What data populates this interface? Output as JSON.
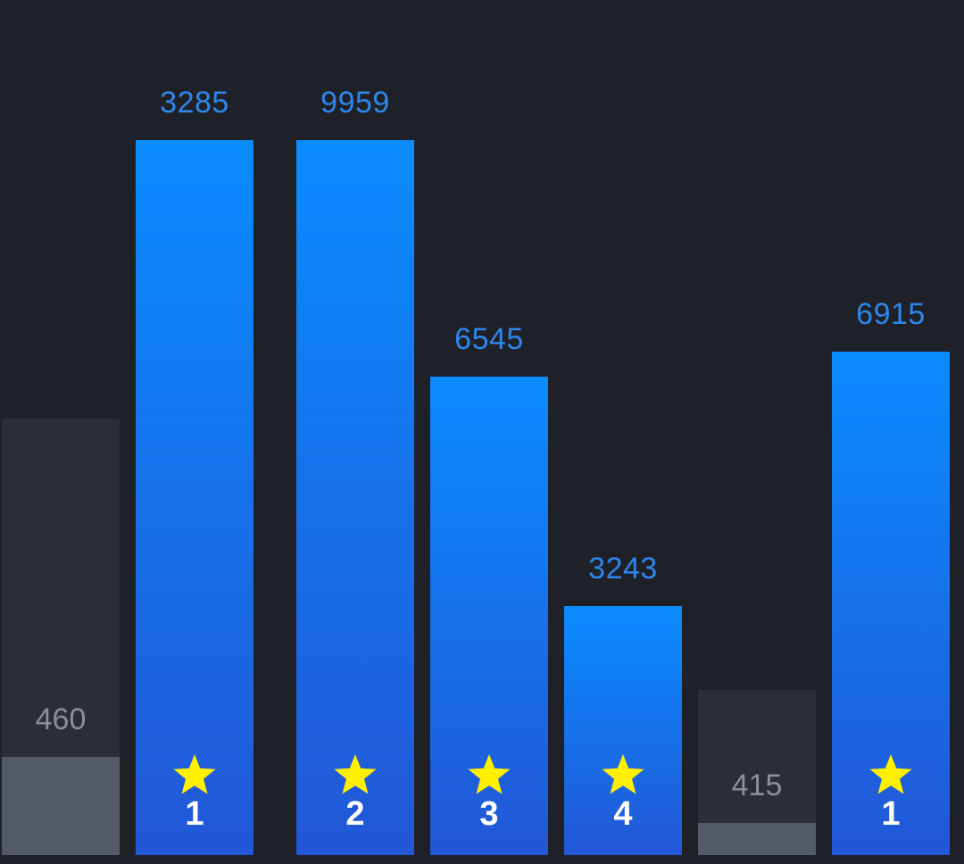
{
  "colors": {
    "background": "#1f2128",
    "active_bar_top": "#0a8cff",
    "active_bar_bottom": "#2257d6",
    "inactive_bar": "#2b2e36",
    "inactive_fill": "#545a68",
    "value_label": "#2f86ea",
    "star": "#ffef00"
  },
  "bars": [
    {
      "value": "460",
      "active": false,
      "rank": "",
      "icon": ""
    },
    {
      "value": "3285",
      "active": true,
      "rank": "1",
      "icon": "star-icon"
    },
    {
      "value": "9959",
      "active": true,
      "rank": "2",
      "icon": "star-icon"
    },
    {
      "value": "6545",
      "active": true,
      "rank": "3",
      "icon": "star-icon"
    },
    {
      "value": "3243",
      "active": true,
      "rank": "4",
      "icon": "star-icon"
    },
    {
      "value": "415",
      "active": false,
      "rank": "",
      "icon": ""
    },
    {
      "value": "6915",
      "active": true,
      "rank": "1",
      "icon": "star-icon"
    }
  ]
}
